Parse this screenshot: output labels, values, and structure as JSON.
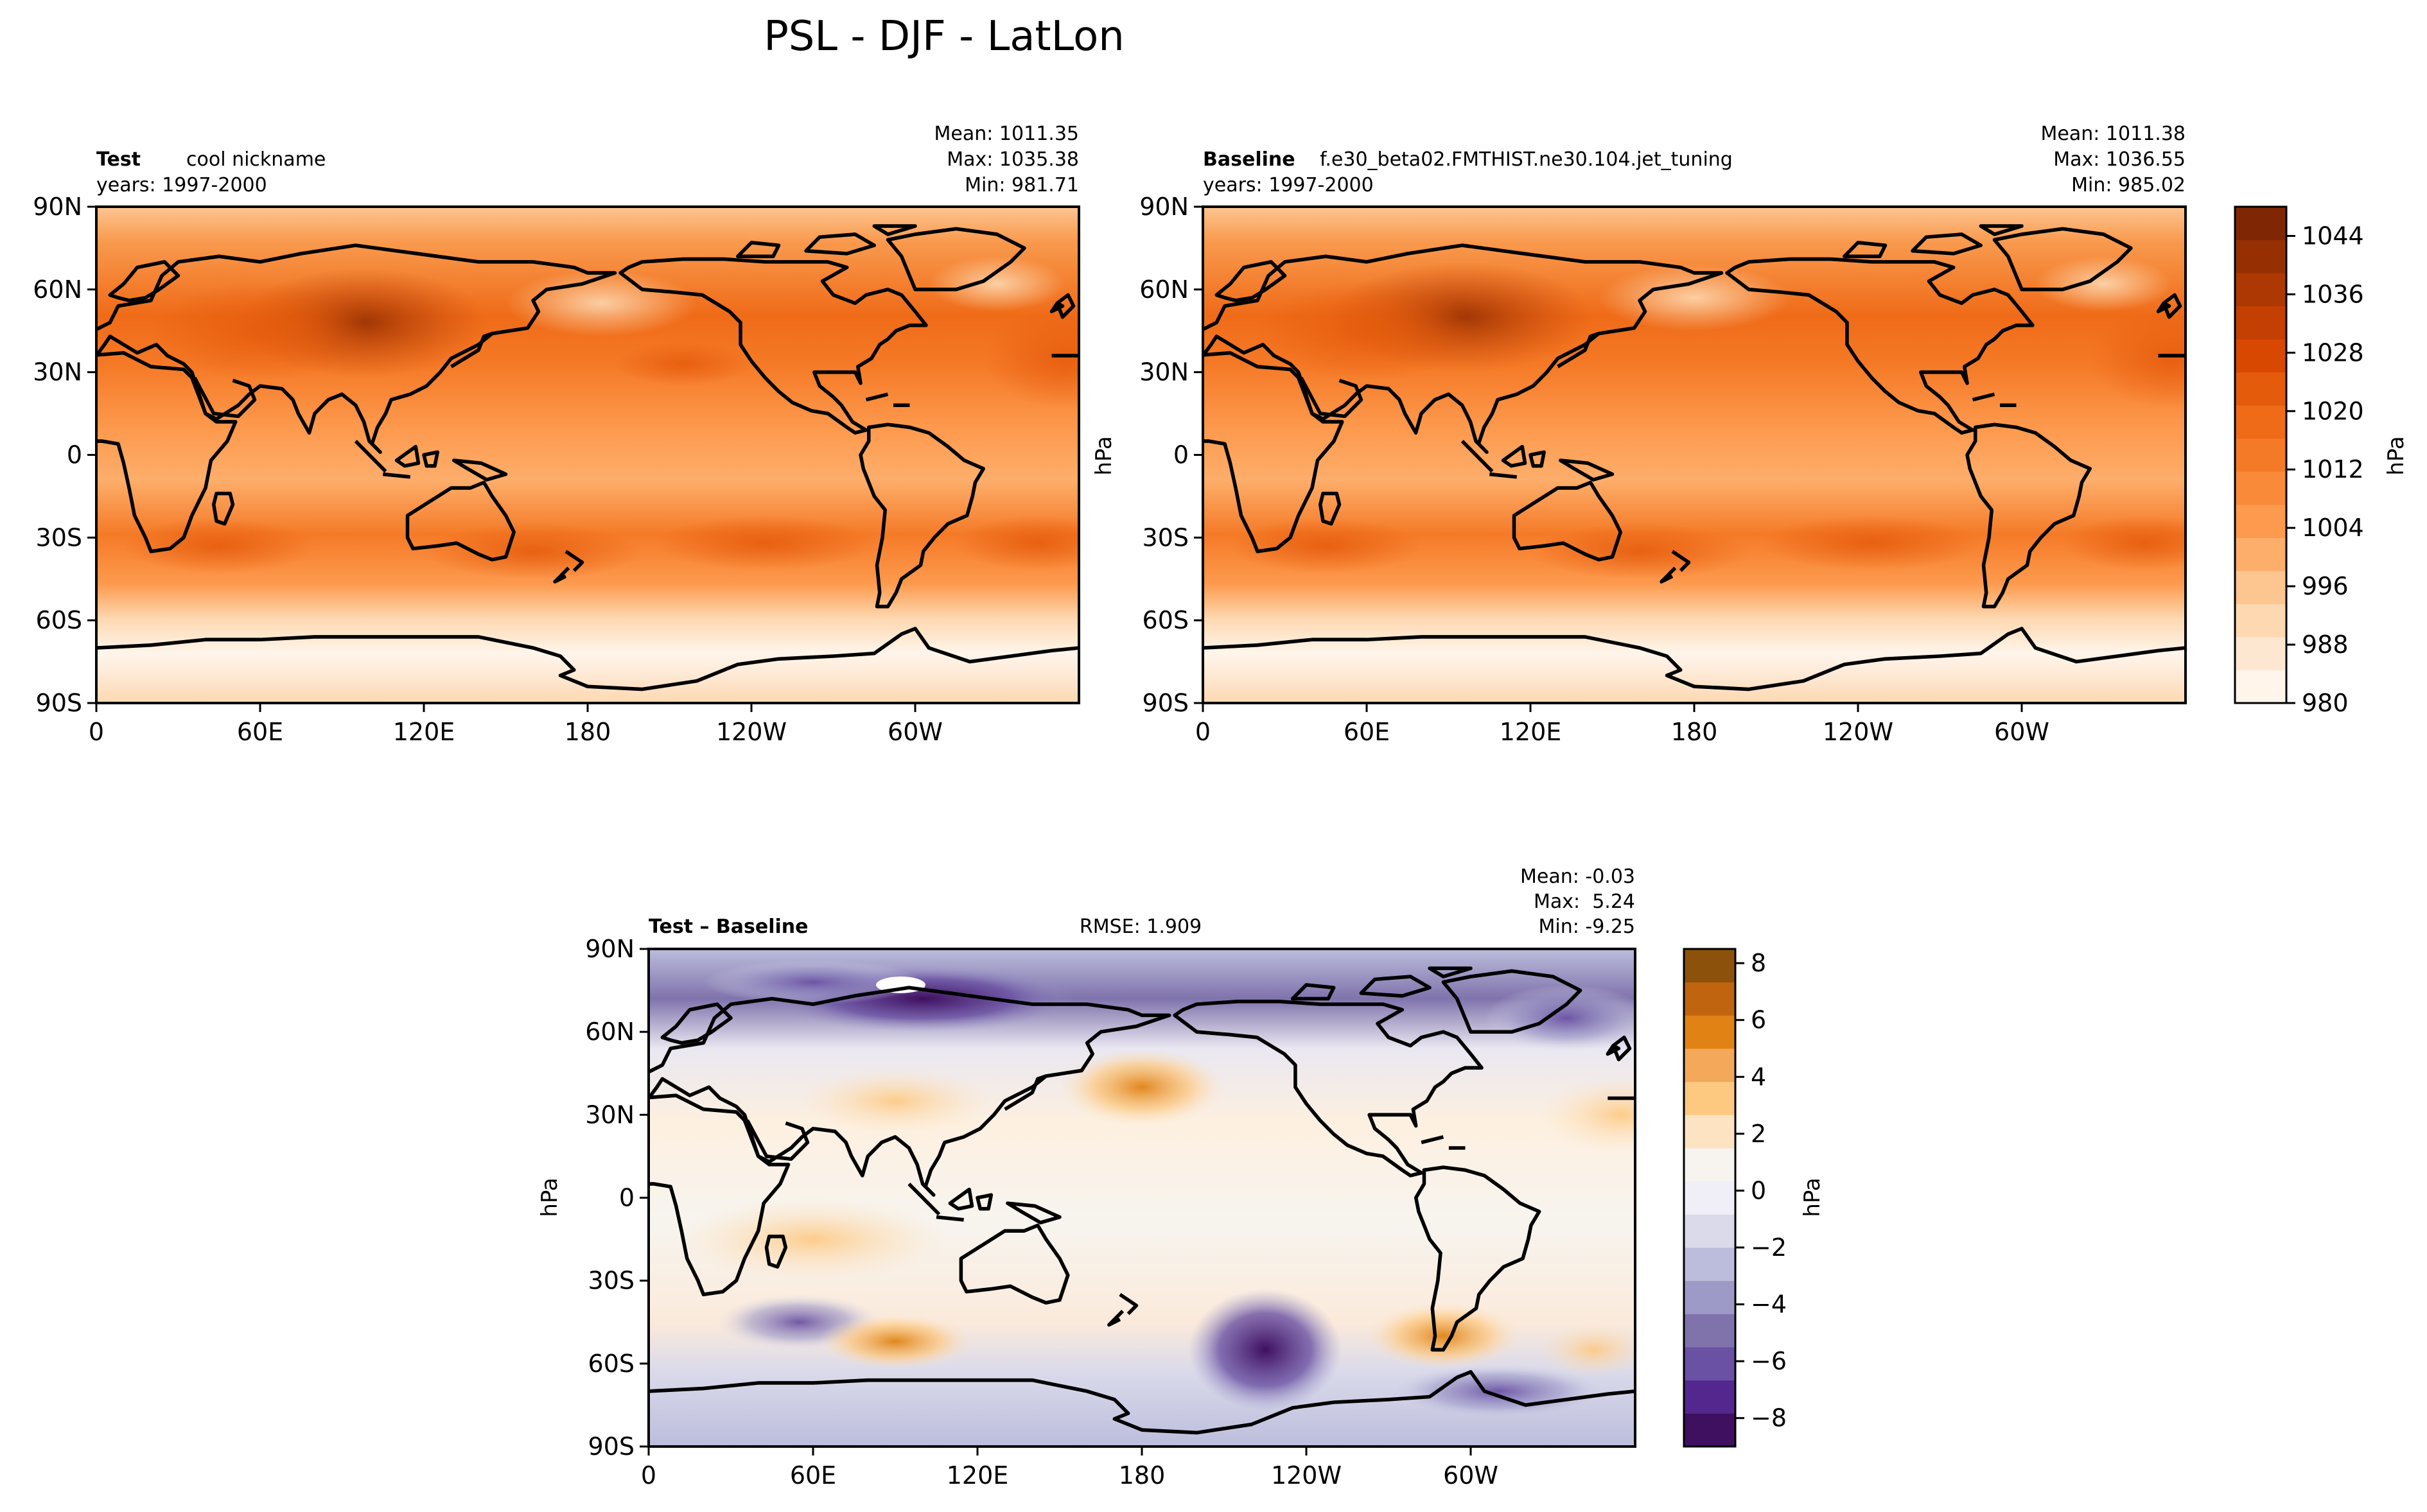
{
  "figure": {
    "title": "PSL - DJF - LatLon"
  },
  "chart_data": [
    {
      "type": "heatmap",
      "panel": "test",
      "label_bold": "Test",
      "label_name": "cool nickname",
      "years": "years: 1997-2000",
      "stats": [
        "Mean: 1011.35",
        "Max: 1035.38",
        "Min: 981.71"
      ],
      "cbar_label": "hPa",
      "xticks": [
        "0",
        "60E",
        "120E",
        "180",
        "120W",
        "60W"
      ],
      "yticks": [
        "90N",
        "60N",
        "30N",
        "0",
        "30S",
        "60S",
        "90S"
      ],
      "xlim": [
        0,
        360
      ],
      "ylim": [
        -90,
        90
      ]
    },
    {
      "type": "heatmap",
      "panel": "baseline",
      "label_bold": "Baseline",
      "label_name": "f.e30_beta02.FMTHIST.ne30.104.jet_tuning",
      "years": "years: 1997-2000",
      "stats": [
        "Mean: 1011.38",
        "Max: 1036.55",
        "Min: 985.02"
      ],
      "cbar_label": "hPa",
      "xticks": [
        "0",
        "60E",
        "120E",
        "180",
        "120W",
        "60W"
      ],
      "yticks": [
        "90N",
        "60N",
        "30N",
        "0",
        "30S",
        "60S",
        "90S"
      ],
      "xlim": [
        0,
        360
      ],
      "ylim": [
        -90,
        90
      ],
      "colorbar": {
        "range": [
          980,
          1048
        ],
        "ticks": [
          980,
          988,
          996,
          1004,
          1012,
          1020,
          1028,
          1036,
          1044
        ],
        "colors": [
          "#fff5eb",
          "#fee7d1",
          "#fdd8b0",
          "#fdc590",
          "#fdae6b",
          "#fd9a4e",
          "#f98a3a",
          "#f57a27",
          "#ef6b18",
          "#e55b0c",
          "#d94801",
          "#c44002",
          "#ae3803",
          "#963003",
          "#7f2704"
        ]
      }
    },
    {
      "type": "heatmap",
      "panel": "difference",
      "label_bold": "Test – Baseline",
      "rmse": "RMSE: 1.909",
      "stats": [
        "Mean: -0.03",
        "Max:  5.24",
        "Min: -9.25"
      ],
      "cbar_label": "hPa",
      "xticks": [
        "0",
        "60E",
        "120E",
        "180",
        "120W",
        "60W"
      ],
      "yticks": [
        "90N",
        "60N",
        "30N",
        "0",
        "30S",
        "60S",
        "90S"
      ],
      "xlim": [
        0,
        360
      ],
      "ylim": [
        -90,
        90
      ],
      "colorbar": {
        "range": [
          -9,
          8.5
        ],
        "ticks": [
          -8,
          -6,
          -4,
          -2,
          0,
          2,
          4,
          6,
          8
        ],
        "colors": [
          "#3f0f60",
          "#54278f",
          "#6a51a3",
          "#8073ac",
          "#9e9ac8",
          "#bcbddc",
          "#dadaeb",
          "#f0eef6",
          "#f7f4ef",
          "#fde3c2",
          "#fdc880",
          "#f3a85a",
          "#e08214",
          "#c06410",
          "#8c510a"
        ]
      }
    }
  ],
  "colors": {
    "test_base": "#f99a4e",
    "baseline_base": "#f99a4e",
    "diff_base": "#f7f3ee"
  }
}
